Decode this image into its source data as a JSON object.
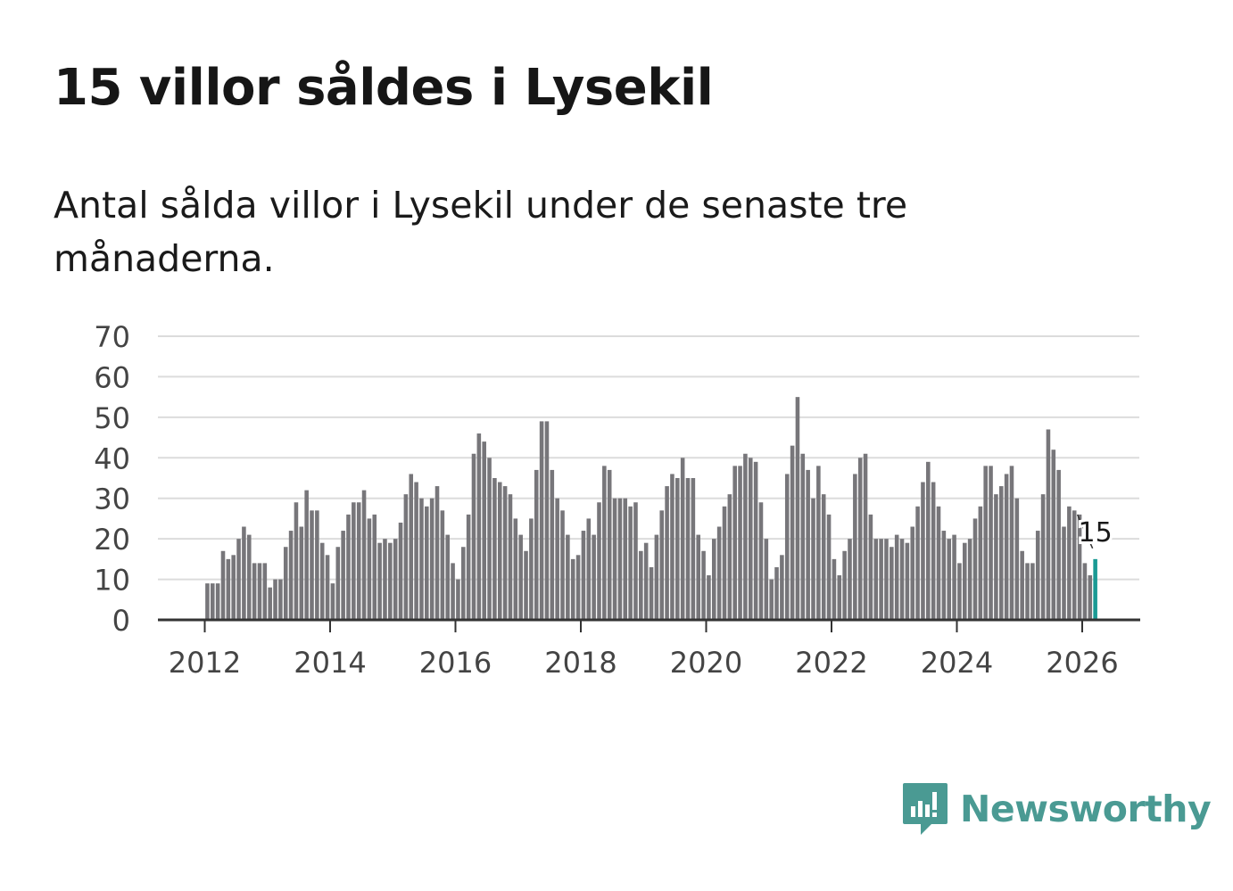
{
  "title": "15 villor såldes i Lysekil",
  "subtitle": "Antal sålda villor i Lysekil under de senaste tre månaderna.",
  "brand": {
    "name": "Newsworthy",
    "color": "#4a9a93"
  },
  "chart_data": {
    "type": "bar",
    "title": "15 villor såldes i Lysekil",
    "ylim": [
      0,
      70
    ],
    "y_ticks": [
      0,
      10,
      20,
      30,
      40,
      50,
      60,
      70
    ],
    "x_ticks": [
      "2012",
      "2014",
      "2016",
      "2018",
      "2020",
      "2022",
      "2024",
      "2026"
    ],
    "xlabel": "",
    "ylabel": "",
    "grid": true,
    "bar_color": "#77767a",
    "highlight_color": "#1a9a94",
    "highlight_label": "15",
    "series": [
      {
        "name": "2012",
        "values": [
          9,
          9,
          9,
          17,
          15,
          16,
          20,
          23,
          21,
          14,
          14,
          14
        ]
      },
      {
        "name": "2013",
        "values": [
          8,
          10,
          10,
          18,
          22,
          29,
          23,
          32,
          27,
          27,
          19,
          16
        ]
      },
      {
        "name": "2014",
        "values": [
          9,
          18,
          22,
          26,
          29,
          29,
          32,
          25,
          26,
          19,
          20,
          19
        ]
      },
      {
        "name": "2015",
        "values": [
          20,
          24,
          31,
          36,
          34,
          30,
          28,
          30,
          33,
          27,
          21,
          14
        ]
      },
      {
        "name": "2016",
        "values": [
          10,
          18,
          26,
          41,
          46,
          44,
          40,
          35,
          34,
          33,
          31,
          25
        ]
      },
      {
        "name": "2017",
        "values": [
          21,
          17,
          25,
          37,
          49,
          49,
          37,
          30,
          27,
          21,
          15,
          16
        ]
      },
      {
        "name": "2018",
        "values": [
          22,
          25,
          21,
          29,
          38,
          37,
          30,
          30,
          30,
          28,
          29,
          17
        ]
      },
      {
        "name": "2019",
        "values": [
          19,
          13,
          21,
          27,
          33,
          36,
          35,
          40,
          35,
          35,
          21,
          17
        ]
      },
      {
        "name": "2020",
        "values": [
          11,
          20,
          23,
          28,
          31,
          38,
          38,
          41,
          40,
          39,
          29,
          20
        ]
      },
      {
        "name": "2021",
        "values": [
          10,
          13,
          16,
          36,
          43,
          55,
          41,
          37,
          30,
          38,
          31,
          26
        ]
      },
      {
        "name": "2022",
        "values": [
          15,
          11,
          17,
          20,
          36,
          40,
          41,
          26,
          20,
          20,
          20,
          18
        ]
      },
      {
        "name": "2023",
        "values": [
          21,
          20,
          19,
          23,
          28,
          34,
          39,
          34,
          28,
          22,
          20,
          21
        ]
      },
      {
        "name": "2024",
        "values": [
          14,
          19,
          20,
          25,
          28,
          38,
          38,
          31,
          33,
          36,
          38,
          30
        ]
      },
      {
        "name": "2025",
        "values": [
          17,
          14,
          14,
          22,
          31,
          47,
          42,
          37,
          23,
          28,
          27,
          26
        ]
      },
      {
        "name": "2026",
        "values": [
          14,
          11,
          15
        ]
      }
    ]
  }
}
